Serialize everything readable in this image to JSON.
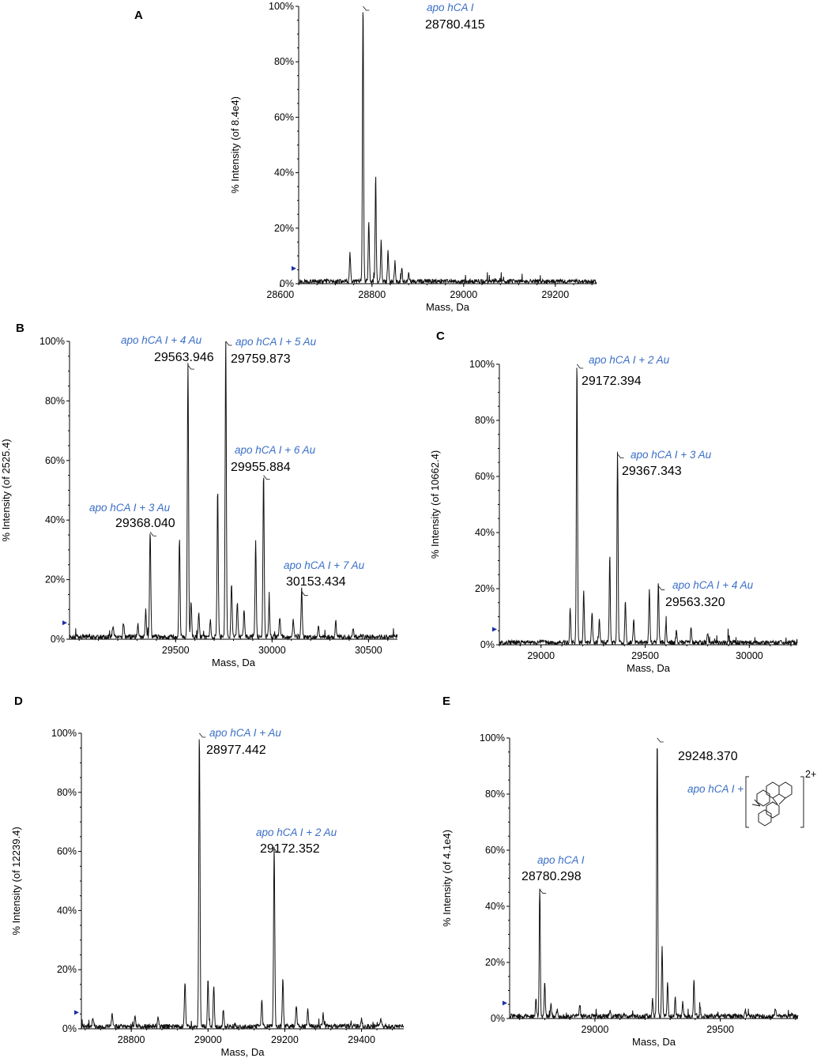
{
  "colors": {
    "trace": "#111111",
    "axis": "#000000",
    "annotation": "#3b6fc6",
    "marker": "#1a2fa8"
  },
  "chart_data": [
    {
      "panel": "A",
      "type": "line",
      "xlabel": "Mass, Da",
      "ylabel": "% Intensity (of 8.4e4)",
      "xlim": [
        28640,
        29290
      ],
      "ylim": [
        0,
        100
      ],
      "xticks": [
        28600,
        28800,
        29000,
        29200
      ],
      "xtick_labels": [
        "28600",
        "28800",
        "29000",
        "29200"
      ],
      "yticks": [
        0,
        20,
        40,
        60,
        80,
        100
      ],
      "ytick_labels": [
        "0%",
        "20%",
        "40%",
        "60%",
        "80%",
        "100%"
      ],
      "peaks": [
        {
          "mass": 28780.415,
          "intensity": 100,
          "label": "apo hCA I",
          "mass_label": "28780.415"
        }
      ],
      "minor_peaks": [
        {
          "mass": 28752,
          "intensity": 10
        },
        {
          "mass": 28793,
          "intensity": 22
        },
        {
          "mass": 28808,
          "intensity": 38
        },
        {
          "mass": 28820,
          "intensity": 15
        },
        {
          "mass": 28835,
          "intensity": 11
        },
        {
          "mass": 28850,
          "intensity": 7
        },
        {
          "mass": 28865,
          "intensity": 5
        },
        {
          "mass": 28880,
          "intensity": 3
        }
      ]
    },
    {
      "panel": "B",
      "type": "line",
      "xlabel": "Mass, Da",
      "ylabel": "% Intensity (of 2525.4)",
      "xlim": [
        28950,
        30650
      ],
      "ylim": [
        0,
        100
      ],
      "xticks": [
        29500,
        30000,
        30500
      ],
      "xtick_labels": [
        "29500",
        "30000",
        "30500"
      ],
      "yticks": [
        0,
        20,
        40,
        60,
        80,
        100
      ],
      "ytick_labels": [
        "0%",
        "20%",
        "40%",
        "60%",
        "80%",
        "100%"
      ],
      "peaks": [
        {
          "mass": 29368.04,
          "intensity": 36,
          "label": "apo hCA I + 3 Au",
          "mass_label": "29368.040"
        },
        {
          "mass": 29563.946,
          "intensity": 92,
          "label": "apo hCA I + 4 Au",
          "mass_label": "29563.946"
        },
        {
          "mass": 29759.873,
          "intensity": 100,
          "label": "apo hCA I + 5 Au",
          "mass_label": "29759.873"
        },
        {
          "mass": 29955.884,
          "intensity": 55,
          "label": "apo hCA I + 6 Au",
          "mass_label": "29955.884"
        },
        {
          "mass": 30153.434,
          "intensity": 16,
          "label": "apo hCA I + 7 Au",
          "mass_label": "30153.434"
        }
      ],
      "minor_peaks": [
        {
          "mass": 29175,
          "intensity": 4
        },
        {
          "mass": 29230,
          "intensity": 5
        },
        {
          "mass": 29305,
          "intensity": 4
        },
        {
          "mass": 29345,
          "intensity": 9
        },
        {
          "mass": 29520,
          "intensity": 33
        },
        {
          "mass": 29580,
          "intensity": 12
        },
        {
          "mass": 29620,
          "intensity": 8
        },
        {
          "mass": 29680,
          "intensity": 6
        },
        {
          "mass": 29718,
          "intensity": 50
        },
        {
          "mass": 29790,
          "intensity": 18
        },
        {
          "mass": 29820,
          "intensity": 12
        },
        {
          "mass": 29855,
          "intensity": 9
        },
        {
          "mass": 29915,
          "intensity": 32
        },
        {
          "mass": 29985,
          "intensity": 12
        },
        {
          "mass": 30040,
          "intensity": 7
        },
        {
          "mass": 30110,
          "intensity": 6
        },
        {
          "mass": 30240,
          "intensity": 4
        },
        {
          "mass": 30330,
          "intensity": 5
        },
        {
          "mass": 30420,
          "intensity": 3
        }
      ]
    },
    {
      "panel": "C",
      "type": "line",
      "xlabel": "Mass, Da",
      "ylabel": "% Intensity (of 10662.4)",
      "xlim": [
        28800,
        30230
      ],
      "ylim": [
        0,
        100
      ],
      "xticks": [
        29000,
        29500,
        30000
      ],
      "xtick_labels": [
        "29000",
        "29500",
        "30000"
      ],
      "yticks": [
        0,
        20,
        40,
        60,
        80,
        100
      ],
      "ytick_labels": [
        "0%",
        "20%",
        "40%",
        "60%",
        "80%",
        "100%"
      ],
      "peaks": [
        {
          "mass": 29172.394,
          "intensity": 100,
          "label": "apo hCA I + 2 Au",
          "mass_label": "29172.394"
        },
        {
          "mass": 29367.343,
          "intensity": 68,
          "label": "apo hCA I + 3 Au",
          "mass_label": "29367.343"
        },
        {
          "mass": 29563.32,
          "intensity": 21,
          "label": "apo hCA I + 4 Au",
          "mass_label": "29563.320"
        }
      ],
      "minor_peaks": [
        {
          "mass": 29140,
          "intensity": 12
        },
        {
          "mass": 29205,
          "intensity": 18
        },
        {
          "mass": 29245,
          "intensity": 11
        },
        {
          "mass": 29280,
          "intensity": 8
        },
        {
          "mass": 29330,
          "intensity": 31
        },
        {
          "mass": 29405,
          "intensity": 15
        },
        {
          "mass": 29445,
          "intensity": 9
        },
        {
          "mass": 29520,
          "intensity": 18
        },
        {
          "mass": 29600,
          "intensity": 7
        },
        {
          "mass": 29650,
          "intensity": 5
        },
        {
          "mass": 29720,
          "intensity": 5
        },
        {
          "mass": 29800,
          "intensity": 3
        },
        {
          "mass": 29900,
          "intensity": 2
        }
      ]
    },
    {
      "panel": "D",
      "type": "line",
      "xlabel": "Mass, Da",
      "ylabel": "% Intensity (of 12239.4)",
      "xlim": [
        28670,
        29510
      ],
      "ylim": [
        0,
        100
      ],
      "xticks": [
        28800,
        29000,
        29200,
        29400
      ],
      "xtick_labels": [
        "28800",
        "29000",
        "29200",
        "29400"
      ],
      "yticks": [
        0,
        20,
        40,
        60,
        80,
        100
      ],
      "ytick_labels": [
        "0%",
        "20%",
        "40%",
        "60%",
        "80%",
        "100%"
      ],
      "peaks": [
        {
          "mass": 28977.442,
          "intensity": 100,
          "label": "apo hCA I + Au",
          "mass_label": "28977.442"
        },
        {
          "mass": 29172.352,
          "intensity": 61,
          "label": "apo hCA I + 2 Au",
          "mass_label": "29172.352"
        }
      ],
      "minor_peaks": [
        {
          "mass": 28700,
          "intensity": 3
        },
        {
          "mass": 28750,
          "intensity": 4
        },
        {
          "mass": 28810,
          "intensity": 3
        },
        {
          "mass": 28870,
          "intensity": 3
        },
        {
          "mass": 28940,
          "intensity": 15
        },
        {
          "mass": 29000,
          "intensity": 16
        },
        {
          "mass": 29015,
          "intensity": 14
        },
        {
          "mass": 29040,
          "intensity": 6
        },
        {
          "mass": 29140,
          "intensity": 9
        },
        {
          "mass": 29195,
          "intensity": 16
        },
        {
          "mass": 29230,
          "intensity": 7
        },
        {
          "mass": 29260,
          "intensity": 6
        },
        {
          "mass": 29300,
          "intensity": 4
        },
        {
          "mass": 29400,
          "intensity": 3
        },
        {
          "mass": 29450,
          "intensity": 3
        }
      ]
    },
    {
      "panel": "E",
      "type": "line",
      "xlabel": "Mass, Da",
      "ylabel": "% Intensity (of 4.1e4)",
      "xlim": [
        28660,
        29810
      ],
      "ylim": [
        0,
        100
      ],
      "xticks": [
        29000,
        29500
      ],
      "xtick_labels": [
        "29000",
        "29500"
      ],
      "yticks": [
        0,
        20,
        40,
        60,
        80,
        100
      ],
      "ytick_labels": [
        "0%",
        "20%",
        "40%",
        "60%",
        "80%",
        "100%"
      ],
      "peaks": [
        {
          "mass": 28780.298,
          "intensity": 46,
          "label": "apo hCA I",
          "mass_label": "28780.298"
        },
        {
          "mass": 29248.37,
          "intensity": 100,
          "label": "apo hCA I +",
          "mass_label": "29248.370",
          "complex_charge": "2+"
        }
      ],
      "minor_peaks": [
        {
          "mass": 28765,
          "intensity": 7
        },
        {
          "mass": 28800,
          "intensity": 12
        },
        {
          "mass": 28825,
          "intensity": 5
        },
        {
          "mass": 28850,
          "intensity": 3
        },
        {
          "mass": 28940,
          "intensity": 4
        },
        {
          "mass": 29060,
          "intensity": 2
        },
        {
          "mass": 29230,
          "intensity": 6
        },
        {
          "mass": 29268,
          "intensity": 25
        },
        {
          "mass": 29290,
          "intensity": 12
        },
        {
          "mass": 29320,
          "intensity": 7
        },
        {
          "mass": 29350,
          "intensity": 5
        },
        {
          "mass": 29395,
          "intensity": 13
        },
        {
          "mass": 29420,
          "intensity": 3
        },
        {
          "mass": 29600,
          "intensity": 2
        },
        {
          "mass": 29720,
          "intensity": 3
        }
      ]
    }
  ]
}
